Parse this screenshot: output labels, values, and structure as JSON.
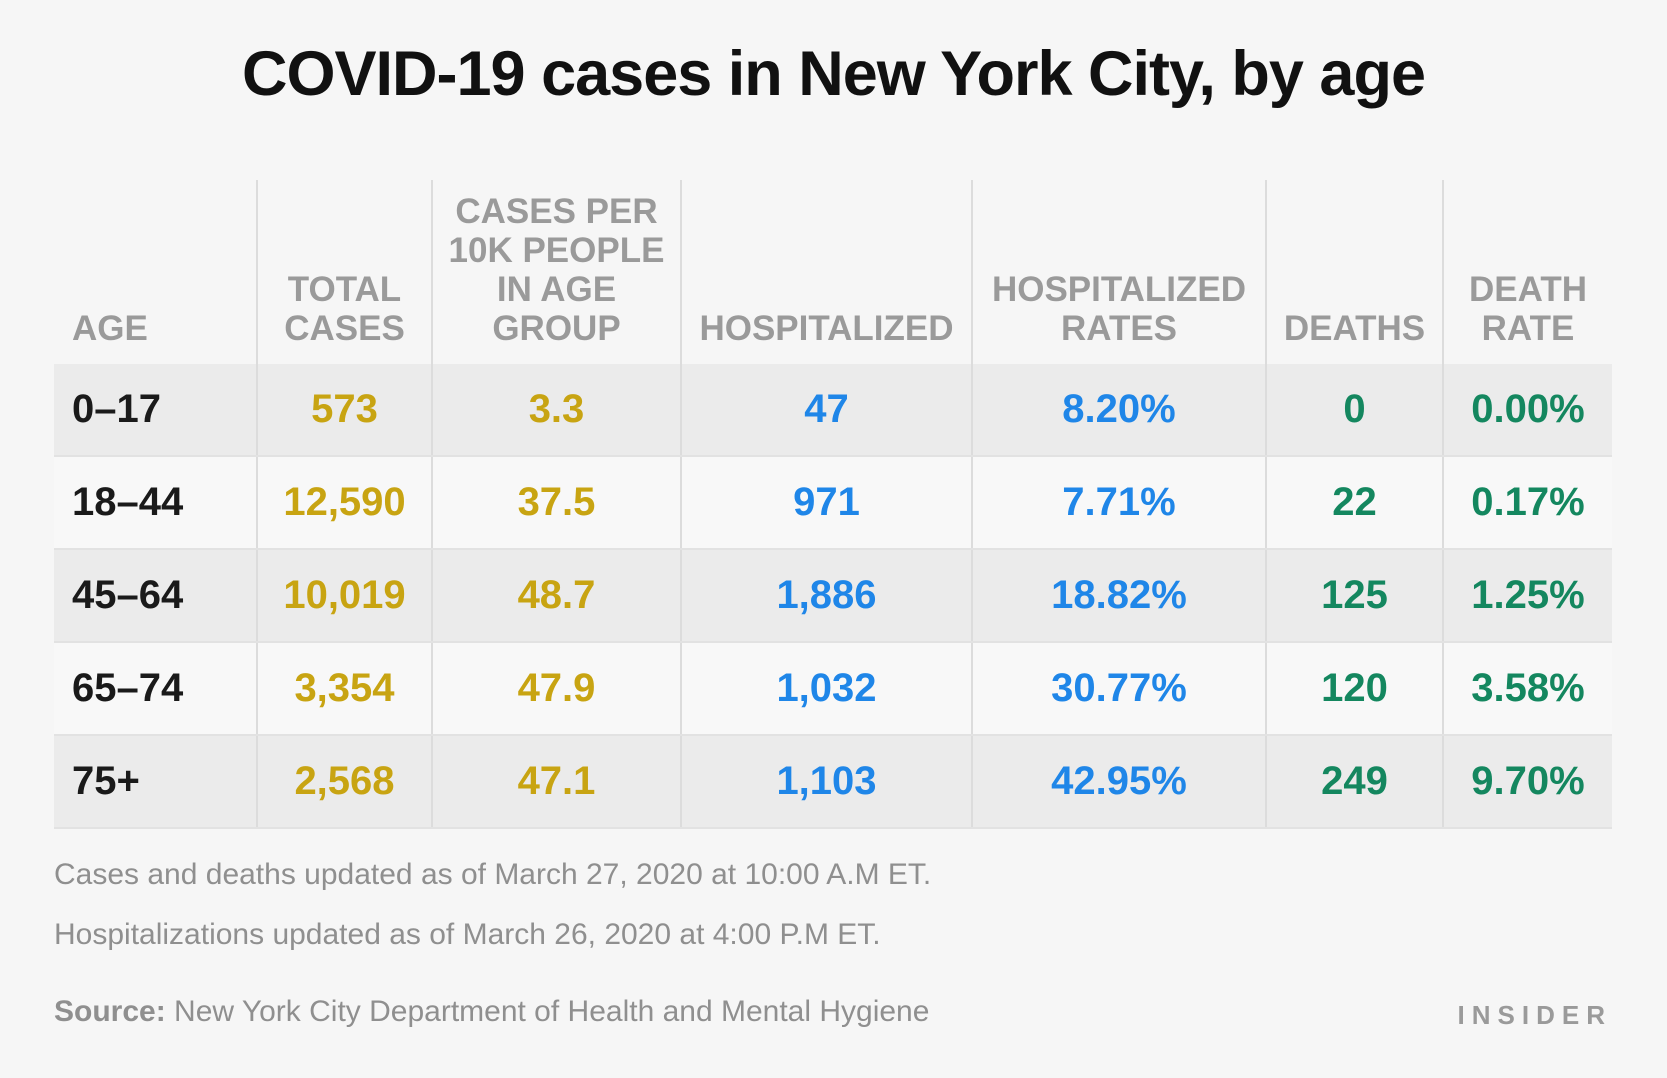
{
  "title": "COVID-19 cases in New York City, by age",
  "colors": {
    "cases": "#c8a412",
    "hospital": "#1f86e8",
    "deaths": "#14875f",
    "header": "#9a9a9a",
    "age": "#1a1a1a"
  },
  "chart_data": {
    "type": "table",
    "columns": [
      "AGE",
      "TOTAL\nCASES",
      "CASES PER\n10K PEOPLE\nIN AGE\nGROUP",
      "HOSPITALIZED",
      "HOSPITALIZED\nRATES",
      "DEATHS",
      "DEATH\nRATE"
    ],
    "rows": [
      [
        "0–17",
        "573",
        "3.3",
        "47",
        "8.20%",
        "0",
        "0.00%"
      ],
      [
        "18–44",
        "12,590",
        "37.5",
        "971",
        "7.71%",
        "22",
        "0.17%"
      ],
      [
        "45–64",
        "10,019",
        "48.7",
        "1,886",
        "18.82%",
        "125",
        "1.25%"
      ],
      [
        "65–74",
        "3,354",
        "47.9",
        "1,032",
        "30.77%",
        "120",
        "3.58%"
      ],
      [
        "75+",
        "2,568",
        "47.1",
        "1,103",
        "42.95%",
        "249",
        "9.70%"
      ]
    ]
  },
  "notes": {
    "cases_update": "Cases and deaths updated as of March 27, 2020 at 10:00 A.M ET.",
    "hosp_update": "Hospitalizations updated as of March 26, 2020 at 4:00 P.M ET."
  },
  "source": {
    "label": "Source:",
    "text": " New York City Department of Health and Mental Hygiene"
  },
  "brand": "INSIDER"
}
